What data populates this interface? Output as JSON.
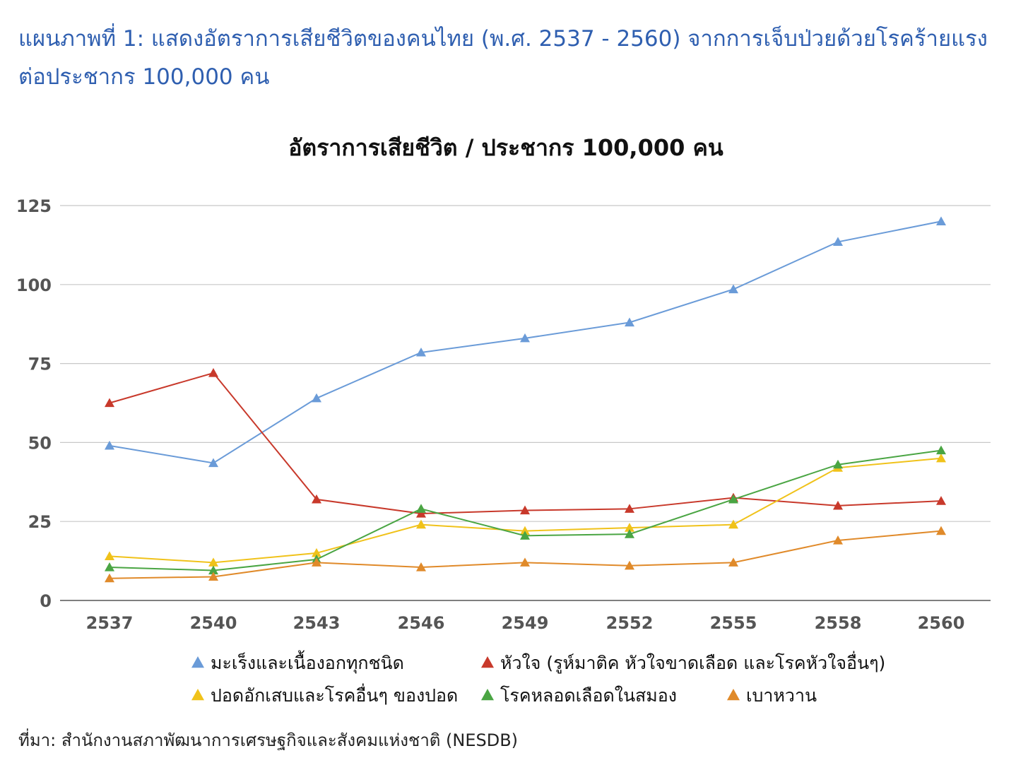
{
  "heading": {
    "line1": "แผนภาพที่ 1: แสดงอัตราการเสียชีวิตของคนไทย (พ.ศ. 2537 - 2560) จากการเจ็บป่วยด้วยโรคร้ายแรง",
    "line2": "ต่อประชากร 100,000 คน"
  },
  "source": "ที่มา: สำนักงานสภาพัฒนาการเศรษฐกิจและสังคมแห่งชาติ (NESDB)",
  "chart_data": {
    "type": "line",
    "title": "อัตราการเสียชีวิต / ประชากร 100,000 คน",
    "xlabel": "",
    "ylabel": "",
    "categories": [
      "2537",
      "2540",
      "2543",
      "2546",
      "2549",
      "2552",
      "2555",
      "2558",
      "2560"
    ],
    "ylim": [
      0,
      125
    ],
    "yticks": [
      0,
      25,
      50,
      75,
      100,
      125
    ],
    "grid": true,
    "legend_position": "bottom",
    "marker": "triangle",
    "series": [
      {
        "name": "มะเร็งและเนื้องอกทุกชนิด",
        "color": "#6a9bd8",
        "values": [
          49,
          43.5,
          64,
          78.5,
          83,
          88,
          98.5,
          113.5,
          120
        ]
      },
      {
        "name": "หัวใจ (รูห์มาติค หัวใจขาดเลือด และโรคหัวใจอื่นๆ)",
        "color": "#c8392b",
        "values": [
          62.5,
          72,
          32,
          27.5,
          28.5,
          29,
          32.5,
          30,
          31.5
        ]
      },
      {
        "name": "ปอดอักเสบและโรคอื่นๆ ของปอด",
        "color": "#f0c21a",
        "values": [
          14,
          12,
          15,
          24,
          22,
          23,
          24,
          42,
          45
        ]
      },
      {
        "name": "โรคหลอดเลือดในสมอง",
        "color": "#4aa543",
        "values": [
          10.5,
          9.5,
          13,
          29,
          20.5,
          21,
          32,
          43,
          47.5
        ]
      },
      {
        "name": "เบาหวาน",
        "color": "#e08a2a",
        "values": [
          7,
          7.5,
          12,
          10.5,
          12,
          11,
          12,
          19,
          22
        ]
      }
    ]
  }
}
